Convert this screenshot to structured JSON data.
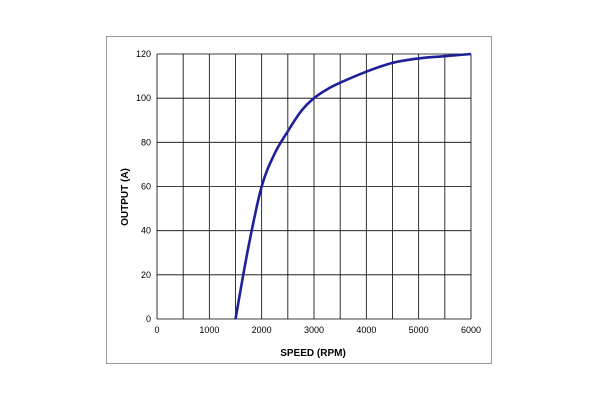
{
  "chart_data": {
    "type": "line",
    "title": "",
    "xlabel": "SPEED (RPM)",
    "ylabel": "OUTPUT (A)",
    "xlim": [
      0,
      6000
    ],
    "ylim": [
      0,
      120
    ],
    "x_ticks": [
      "0",
      "1000",
      "2000",
      "3000",
      "4000",
      "5000",
      "6000"
    ],
    "y_ticks": [
      "0",
      "20",
      "40",
      "60",
      "80",
      "100",
      "120"
    ],
    "grid": true,
    "legend": "none",
    "line_color": "#1f1f99",
    "series": [
      {
        "x": [
          1500,
          1750,
          2000,
          2250,
          2500,
          2750,
          3000,
          3250,
          3500,
          4000,
          4500,
          5000,
          5500,
          6000
        ],
        "values": [
          0,
          33,
          60,
          75,
          85,
          94,
          100,
          104,
          107,
          112,
          116,
          118,
          119,
          120
        ]
      }
    ]
  }
}
